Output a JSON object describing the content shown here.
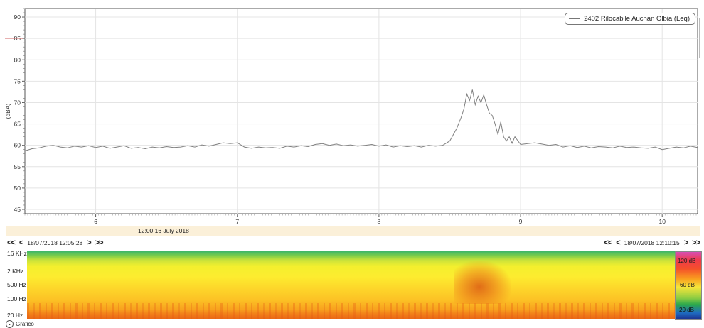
{
  "chart_data": {
    "type": "line",
    "ylabel": "(dBA)",
    "ylim": [
      44,
      92
    ],
    "xlim": [
      5.5,
      10.25
    ],
    "y_ticks": [
      45,
      50,
      55,
      60,
      65,
      70,
      75,
      80,
      85,
      90
    ],
    "x_ticks": [
      6,
      7,
      8,
      9,
      10
    ],
    "grid": true,
    "legend_position": "top-right",
    "series": [
      {
        "name": "2402 Rilocabile Auchan Olbia (Leq)",
        "color": "#808080",
        "x": [
          5.5,
          5.55,
          5.6,
          5.65,
          5.7,
          5.75,
          5.8,
          5.85,
          5.9,
          5.95,
          6.0,
          6.05,
          6.1,
          6.15,
          6.2,
          6.25,
          6.3,
          6.35,
          6.4,
          6.45,
          6.5,
          6.55,
          6.6,
          6.65,
          6.7,
          6.75,
          6.8,
          6.85,
          6.9,
          6.95,
          7.0,
          7.05,
          7.1,
          7.15,
          7.2,
          7.25,
          7.3,
          7.35,
          7.4,
          7.45,
          7.5,
          7.55,
          7.6,
          7.65,
          7.7,
          7.75,
          7.8,
          7.85,
          7.9,
          7.95,
          8.0,
          8.05,
          8.1,
          8.15,
          8.2,
          8.25,
          8.3,
          8.35,
          8.4,
          8.45,
          8.5,
          8.55,
          8.58,
          8.6,
          8.62,
          8.64,
          8.66,
          8.68,
          8.7,
          8.72,
          8.74,
          8.76,
          8.78,
          8.8,
          8.82,
          8.84,
          8.86,
          8.88,
          8.9,
          8.92,
          8.94,
          8.96,
          9.0,
          9.05,
          9.1,
          9.15,
          9.2,
          9.25,
          9.3,
          9.35,
          9.4,
          9.45,
          9.5,
          9.55,
          9.6,
          9.65,
          9.7,
          9.75,
          9.8,
          9.85,
          9.9,
          9.95,
          10.0,
          10.05,
          10.1,
          10.15,
          10.2,
          10.25
        ],
        "y": [
          58.7,
          59.2,
          59.4,
          59.8,
          60.0,
          59.6,
          59.4,
          59.8,
          59.6,
          59.9,
          59.5,
          59.8,
          59.3,
          59.6,
          59.9,
          59.3,
          59.5,
          59.2,
          59.6,
          59.4,
          59.7,
          59.5,
          59.6,
          59.9,
          59.6,
          60.1,
          59.8,
          60.2,
          60.6,
          60.4,
          60.6,
          59.6,
          59.3,
          59.6,
          59.4,
          59.5,
          59.3,
          59.8,
          59.6,
          59.9,
          59.7,
          60.2,
          60.4,
          60.0,
          60.3,
          59.9,
          60.1,
          59.8,
          60.0,
          60.2,
          59.8,
          60.1,
          59.6,
          59.9,
          59.7,
          59.9,
          59.6,
          60.0,
          59.8,
          60.0,
          61.0,
          64.0,
          66.5,
          68.5,
          72.0,
          70.5,
          73.0,
          69.5,
          71.5,
          70.0,
          71.8,
          69.5,
          67.5,
          67.0,
          65.0,
          62.5,
          65.5,
          62.0,
          61.0,
          62.0,
          60.5,
          62.0,
          60.2,
          60.4,
          60.6,
          60.3,
          60.0,
          60.2,
          59.6,
          59.9,
          59.5,
          59.8,
          59.4,
          59.7,
          59.6,
          59.4,
          59.8,
          59.5,
          59.6,
          59.4,
          59.3,
          59.6,
          59.0,
          59.3,
          59.6,
          59.4,
          59.8,
          59.5
        ]
      }
    ]
  },
  "timebar": {
    "label": "12:00 16 July 2018"
  },
  "nav_left": {
    "first": "<<",
    "prev": "<",
    "timestamp": "18/07/2018 12:05:28",
    "next": ">",
    "last": ">>"
  },
  "nav_right": {
    "first": "<<",
    "prev": "<",
    "timestamp": "18/07/2018 12:10:15",
    "next": ">",
    "last": ">>"
  },
  "spectrogram": {
    "freq_labels": [
      "16 KHz",
      "2 KHz",
      "500 Hz",
      "100 Hz",
      "20 Hz"
    ],
    "scale_labels": [
      "120 dB",
      "60 dB",
      "20 dB"
    ]
  },
  "grafico": {
    "label": "Grafico",
    "icon": "chevron-down-icon"
  }
}
